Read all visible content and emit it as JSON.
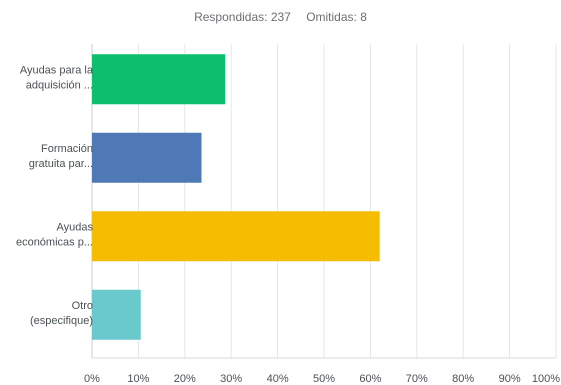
{
  "summary": {
    "answered_label": "Respondidas:",
    "answered_count": "237",
    "skipped_label": "Omitidas:",
    "skipped_count": "8"
  },
  "chart_data": {
    "type": "bar",
    "orientation": "horizontal",
    "categories": [
      [
        "Ayudas para la",
        "adquisición ..."
      ],
      [
        "Formación",
        "gratuita par..."
      ],
      [
        "Ayudas",
        "económicas p..."
      ],
      [
        "Otro",
        "(especifique)"
      ]
    ],
    "values": [
      28.7,
      23.6,
      62.0,
      10.5
    ],
    "colors": [
      "#0bbf6e",
      "#4f79b6",
      "#f6bc00",
      "#6ac9cc"
    ],
    "xlim": [
      0,
      100
    ],
    "xticks": [
      "0%",
      "10%",
      "20%",
      "30%",
      "40%",
      "50%",
      "60%",
      "70%",
      "80%",
      "90%",
      "100%"
    ],
    "grid": true,
    "title": "",
    "xlabel": "",
    "ylabel": ""
  }
}
